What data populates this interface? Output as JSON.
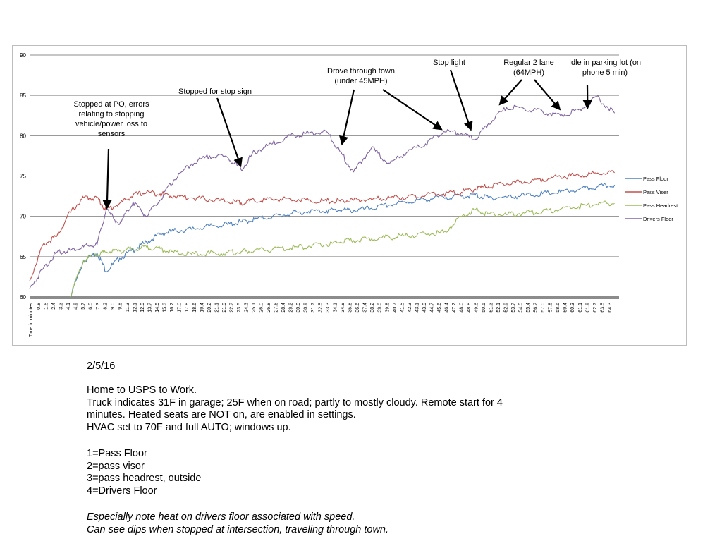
{
  "chart_data": {
    "type": "line",
    "title": "",
    "xlabel": "Time in minutes",
    "ylabel": "",
    "ylim": [
      60,
      90
    ],
    "yticks": [
      60,
      65,
      70,
      75,
      80,
      85,
      90
    ],
    "grid": true,
    "legend_position": "right",
    "x_tick_labels": [
      "0.8",
      "1.6",
      "2.4",
      "3.3",
      "4.1",
      "4.9",
      "5.7",
      "6.5",
      "7.3",
      "8.2",
      "9.0",
      "9.8",
      "11.3",
      "12.1",
      "12.9",
      "13.7",
      "14.5",
      "15.3",
      "16.2",
      "17.0",
      "17.8",
      "18.6",
      "19.4",
      "20.2",
      "21.1",
      "21.9",
      "22.7",
      "23.5",
      "24.3",
      "25.1",
      "26.0",
      "26.8",
      "27.6",
      "28.4",
      "29.2",
      "30.0",
      "30.9",
      "31.7",
      "32.5",
      "33.3",
      "34.1",
      "34.9",
      "35.8",
      "36.6",
      "37.4",
      "38.2",
      "39.0",
      "39.8",
      "40.7",
      "41.5",
      "42.3",
      "43.1",
      "43.9",
      "44.7",
      "45.6",
      "46.4",
      "47.2",
      "48.0",
      "48.8",
      "49.6",
      "50.5",
      "51.3",
      "52.1",
      "52.9",
      "53.7",
      "54.5",
      "55.4",
      "56.2",
      "57.0",
      "57.8",
      "58.6",
      "59.4",
      "60.3",
      "61.1",
      "61.9",
      "62.7",
      "63.5",
      "64.3"
    ],
    "x": [
      0,
      1.5,
      3,
      4.5,
      6,
      7.5,
      8.5,
      10,
      11.5,
      13,
      14.5,
      16,
      18,
      20,
      22,
      23.5,
      25,
      27,
      29,
      31,
      33,
      34.5,
      36,
      38,
      40,
      42,
      44,
      46,
      48,
      49.5,
      51,
      53,
      55,
      57,
      59,
      61,
      63,
      65
    ],
    "series": [
      {
        "name": "Pass Floor",
        "color": "#4f81bd",
        "values": [
          null,
          null,
          null,
          60,
          64.5,
          65.5,
          63.2,
          64.8,
          65.8,
          66.8,
          67.8,
          68.2,
          68.4,
          68.8,
          69.0,
          69.3,
          69.6,
          70.0,
          70.3,
          70.6,
          70.7,
          70.8,
          70.7,
          71.0,
          71.4,
          71.8,
          72.1,
          72.4,
          72.5,
          72.6,
          72.3,
          72.4,
          72.6,
          72.8,
          73.0,
          73.3,
          73.6,
          73.9
        ]
      },
      {
        "name": "Pass Viser",
        "color": "#c0504d",
        "values": [
          62,
          66.5,
          67.5,
          70.5,
          72.3,
          72.3,
          70.8,
          71.6,
          72.6,
          73.0,
          72.8,
          72.5,
          72.3,
          72.1,
          71.8,
          71.7,
          71.9,
          72.1,
          72.2,
          72.0,
          71.9,
          71.9,
          72.0,
          72.1,
          72.3,
          72.4,
          72.6,
          72.8,
          73.0,
          73.4,
          73.7,
          74.0,
          74.3,
          74.6,
          74.9,
          75.1,
          75.3,
          75.4
        ]
      },
      {
        "name": "Pass Headrest",
        "color": "#9bbb59",
        "values": [
          null,
          null,
          null,
          60,
          64.6,
          65.2,
          65.6,
          65.7,
          66.0,
          66.2,
          66.0,
          65.5,
          65.3,
          65.4,
          65.5,
          65.6,
          65.7,
          65.9,
          66.1,
          66.3,
          66.5,
          66.8,
          67.0,
          67.2,
          67.4,
          67.6,
          67.8,
          68.0,
          70.0,
          70.8,
          70.3,
          70.2,
          70.4,
          70.6,
          70.9,
          71.2,
          71.5,
          71.6
        ]
      },
      {
        "name": "Drivers Floor",
        "color": "#8064a2",
        "values": [
          61,
          63.5,
          65.5,
          65.8,
          66.2,
          66.5,
          70.8,
          69.0,
          71.8,
          70.0,
          72.0,
          74.5,
          76.5,
          77.5,
          77.3,
          75.8,
          78.0,
          79.0,
          80.0,
          80.3,
          80.5,
          78.0,
          75.5,
          78.5,
          76.5,
          78.0,
          79.0,
          80.5,
          80.3,
          79.5,
          81.5,
          83.5,
          83.3,
          83.0,
          82.5,
          83.2,
          84.8,
          82.8
        ]
      }
    ],
    "annotations": [
      {
        "text": "Stopped at PO, errors relating to stopping vehicle/power loss to sensors",
        "x": 8.6,
        "y": 70.8
      },
      {
        "text": "Stopped for stop sign",
        "x": 23.5,
        "y": 76.0
      },
      {
        "text": "Drove through town (under 45MPH)",
        "x": 34.5,
        "y": 78.8
      },
      {
        "text": "Drove through town (under 45MPH)",
        "x": 46.0,
        "y": 80.5
      },
      {
        "text": "Stop light",
        "x": 49.0,
        "y": 80.5
      },
      {
        "text": "Regular 2 lane (64MPH)",
        "x": 52.0,
        "y": 83.7
      },
      {
        "text": "Regular 2 lane (64MPH)",
        "x": 59.0,
        "y": 83.0
      },
      {
        "text": "Idle in parking lot (on phone 5 min)",
        "x": 62.0,
        "y": 83.2
      }
    ]
  },
  "chart_text": {
    "x_axis_label": "Time in minutes",
    "ytick_labels": [
      "60",
      "65",
      "70",
      "75",
      "80",
      "85",
      "90"
    ],
    "legend": [
      "Pass Floor",
      "Pass Viser",
      "Pass Headrest",
      "Drivers Floor"
    ],
    "annotations": {
      "po": [
        "Stopped at PO, errors",
        "relating to stopping",
        "vehicle/power loss to",
        "sensors"
      ],
      "stop_sign": [
        "Stopped for stop sign"
      ],
      "town": [
        "Drove through town",
        "(under 45MPH)"
      ],
      "stop_light": [
        "Stop light"
      ],
      "two_lane": [
        "Regular 2 lane",
        "(64MPH)"
      ],
      "idle": [
        "Idle in parking lot (on",
        "phone 5 min)"
      ]
    }
  },
  "notes": {
    "date": "2/5/16",
    "lines": [
      "Home to USPS to Work.",
      "Truck indicates 31F in garage; 25F when on road; partly to mostly cloudy. Remote start for 4",
      "minutes. Heated seats are NOT on, are enabled in settings.",
      "HVAC set to 70F and full AUTO; windows up."
    ],
    "legend_lines": [
      "1=Pass Floor",
      "2=pass visor",
      "3=pass headrest, outside",
      "4=Drivers Floor"
    ],
    "italic_lines": [
      "Especially note heat on drivers floor associated with speed.",
      "Can see dips when stopped at intersection, traveling through town."
    ]
  }
}
